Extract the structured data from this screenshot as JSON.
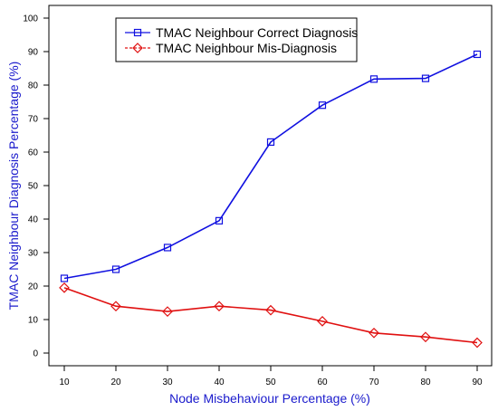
{
  "chart_data": {
    "type": "line",
    "title": "",
    "xlabel": "Node Misbehaviour Percentage (%)",
    "ylabel": "TMAC Neighbour Diagnosis Percentage (%)",
    "x": [
      10,
      20,
      30,
      40,
      50,
      60,
      70,
      80,
      90
    ],
    "xlim": [
      10,
      90
    ],
    "ylim": [
      0,
      100
    ],
    "x_ticks": [
      "10",
      "20",
      "30",
      "40",
      "50",
      "60",
      "70",
      "80",
      "90"
    ],
    "y_ticks": [
      "0",
      "10",
      "20",
      "30",
      "40",
      "50",
      "60",
      "70",
      "80",
      "90",
      "100"
    ],
    "grid": false,
    "legend_position": "top-left",
    "label_color": "#1a1acc",
    "series": [
      {
        "name": "TMAC Neighbour Correct Diagnosis",
        "values": [
          22.3,
          25.0,
          31.5,
          39.5,
          63.0,
          74.0,
          81.8,
          82.0,
          89.2
        ],
        "color": "#1010e0",
        "marker": "square",
        "line_style": "solid"
      },
      {
        "name": "TMAC Neighbour Mis-Diagnosis",
        "values": [
          19.5,
          14.0,
          12.4,
          14.0,
          12.8,
          9.5,
          6.0,
          4.8,
          3.1
        ],
        "color": "#e01010",
        "marker": "diamond",
        "line_style": "solid"
      }
    ]
  }
}
